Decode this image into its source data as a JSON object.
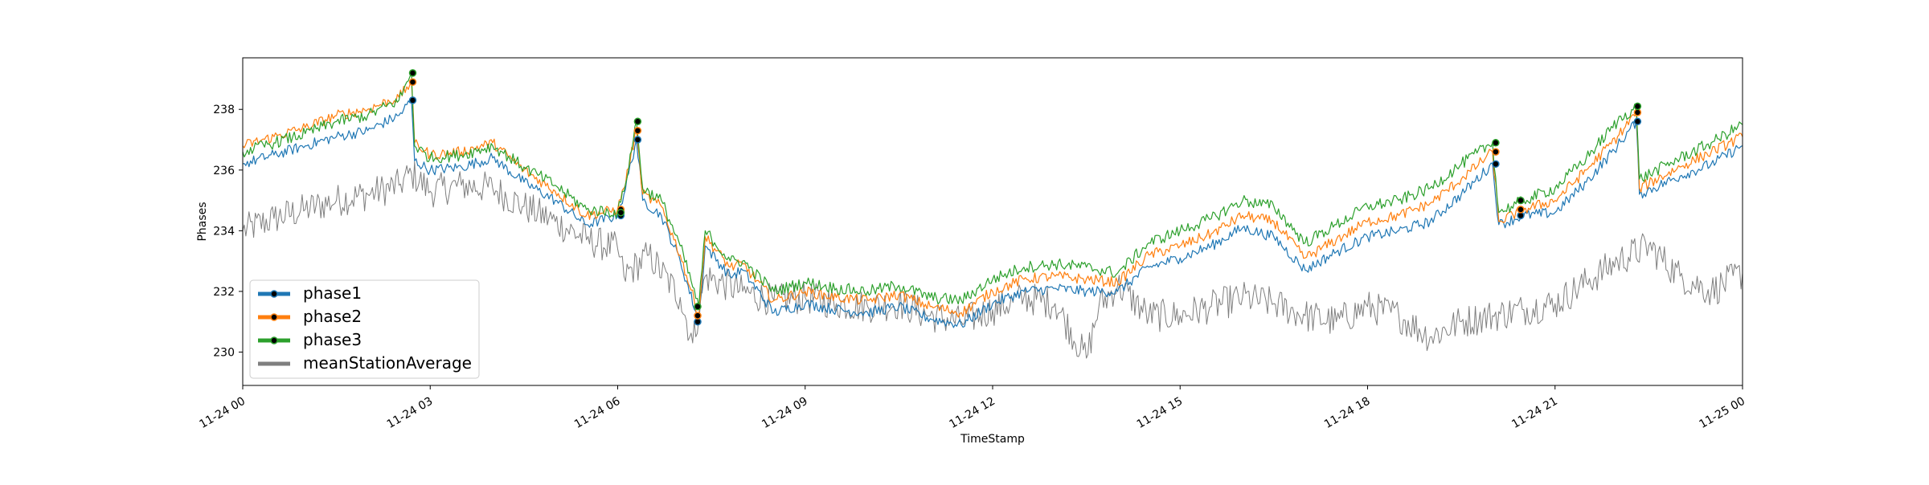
{
  "chart_data": {
    "type": "line",
    "title": "",
    "xlabel": "TimeStamp",
    "ylabel": "Phases",
    "x_range": [
      "11-24 00:00",
      "11-25 00:00"
    ],
    "ylim": [
      228.9,
      239.7
    ],
    "x_ticks": [
      "11-24 00",
      "11-24 03",
      "11-24 06",
      "11-24 09",
      "11-24 12",
      "11-24 15",
      "11-24 18",
      "11-24 21",
      "11-25 00"
    ],
    "y_ticks": [
      230,
      232,
      234,
      236,
      238
    ],
    "grid": false,
    "legend": {
      "placement": "lower-left"
    },
    "x_unit": "hours since 11-24 00:00",
    "series": [
      {
        "name": "phase1",
        "color": "#1f77b4",
        "marker": "black-dot",
        "points": [
          [
            0,
            236.2
          ],
          [
            0.5,
            236.5
          ],
          [
            1,
            236.8
          ],
          [
            1.5,
            237.1
          ],
          [
            2,
            237.3
          ],
          [
            2.5,
            237.8
          ],
          [
            2.7,
            238.3
          ],
          [
            2.75,
            236.3
          ],
          [
            3,
            236.0
          ],
          [
            3.5,
            236.1
          ],
          [
            4,
            236.4
          ],
          [
            4.5,
            235.6
          ],
          [
            5,
            235.0
          ],
          [
            5.5,
            234.2
          ],
          [
            6,
            234.5
          ],
          [
            6.1,
            235.2
          ],
          [
            6.3,
            237.0
          ],
          [
            6.4,
            235.0
          ],
          [
            6.7,
            234.5
          ],
          [
            7,
            233.0
          ],
          [
            7.3,
            231.0
          ],
          [
            7.4,
            233.5
          ],
          [
            7.8,
            232.5
          ],
          [
            8,
            232.7
          ],
          [
            8.5,
            231.3
          ],
          [
            9,
            231.6
          ],
          [
            9.5,
            231.4
          ],
          [
            10,
            231.3
          ],
          [
            10.5,
            231.5
          ],
          [
            11,
            231.1
          ],
          [
            11.5,
            230.9
          ],
          [
            12,
            231.6
          ],
          [
            12.5,
            232.0
          ],
          [
            13,
            232.1
          ],
          [
            13.5,
            232.0
          ],
          [
            14,
            232.0
          ],
          [
            14.5,
            232.8
          ],
          [
            15,
            233.1
          ],
          [
            15.5,
            233.5
          ],
          [
            16,
            234.1
          ],
          [
            16.5,
            233.8
          ],
          [
            17,
            232.7
          ],
          [
            17.5,
            233.3
          ],
          [
            18,
            233.8
          ],
          [
            18.5,
            234.0
          ],
          [
            19,
            234.3
          ],
          [
            19.5,
            235.2
          ],
          [
            20,
            236.2
          ],
          [
            20.1,
            234.2
          ],
          [
            20.5,
            234.5
          ],
          [
            21,
            234.6
          ],
          [
            21.5,
            235.6
          ],
          [
            22,
            236.8
          ],
          [
            22.3,
            237.6
          ],
          [
            22.35,
            235.2
          ],
          [
            23,
            235.8
          ],
          [
            23.5,
            236.2
          ],
          [
            24,
            236.8
          ]
        ]
      },
      {
        "name": "phase2",
        "color": "#ff7f0e",
        "marker": "black-dot",
        "points": [
          [
            0,
            236.8
          ],
          [
            0.5,
            237.1
          ],
          [
            1,
            237.4
          ],
          [
            1.5,
            237.8
          ],
          [
            2,
            238.0
          ],
          [
            2.5,
            238.4
          ],
          [
            2.7,
            238.9
          ],
          [
            2.75,
            236.9
          ],
          [
            3,
            236.5
          ],
          [
            3.5,
            236.6
          ],
          [
            4,
            236.9
          ],
          [
            4.5,
            236.0
          ],
          [
            5,
            235.3
          ],
          [
            5.5,
            234.5
          ],
          [
            6,
            234.7
          ],
          [
            6.1,
            235.4
          ],
          [
            6.3,
            237.3
          ],
          [
            6.4,
            235.2
          ],
          [
            6.7,
            234.8
          ],
          [
            7,
            233.2
          ],
          [
            7.3,
            231.2
          ],
          [
            7.4,
            233.8
          ],
          [
            7.8,
            232.8
          ],
          [
            8,
            232.9
          ],
          [
            8.5,
            231.7
          ],
          [
            9,
            232.0
          ],
          [
            9.5,
            231.8
          ],
          [
            10,
            231.7
          ],
          [
            10.5,
            231.9
          ],
          [
            11,
            231.5
          ],
          [
            11.5,
            231.3
          ],
          [
            12,
            232.0
          ],
          [
            12.5,
            232.4
          ],
          [
            13,
            232.5
          ],
          [
            13.5,
            232.4
          ],
          [
            14,
            232.3
          ],
          [
            14.5,
            233.2
          ],
          [
            15,
            233.5
          ],
          [
            15.5,
            233.9
          ],
          [
            16,
            234.5
          ],
          [
            16.5,
            234.3
          ],
          [
            17,
            233.1
          ],
          [
            17.5,
            233.7
          ],
          [
            18,
            234.3
          ],
          [
            18.5,
            234.5
          ],
          [
            19,
            234.9
          ],
          [
            19.5,
            235.7
          ],
          [
            20,
            236.6
          ],
          [
            20.1,
            234.3
          ],
          [
            20.5,
            234.7
          ],
          [
            21,
            235.0
          ],
          [
            21.5,
            236.0
          ],
          [
            22,
            237.1
          ],
          [
            22.3,
            237.9
          ],
          [
            22.35,
            235.4
          ],
          [
            23,
            236.1
          ],
          [
            23.5,
            236.6
          ],
          [
            24,
            237.1
          ]
        ]
      },
      {
        "name": "phase3",
        "color": "#2ca02c",
        "marker": "black-dot",
        "points": [
          [
            0,
            236.6
          ],
          [
            0.5,
            236.9
          ],
          [
            1,
            237.2
          ],
          [
            1.5,
            237.6
          ],
          [
            2,
            237.8
          ],
          [
            2.5,
            238.3
          ],
          [
            2.7,
            239.2
          ],
          [
            2.75,
            236.8
          ],
          [
            3,
            236.4
          ],
          [
            3.5,
            236.5
          ],
          [
            4,
            236.8
          ],
          [
            4.5,
            236.1
          ],
          [
            5,
            235.5
          ],
          [
            5.5,
            234.7
          ],
          [
            6,
            234.6
          ],
          [
            6.1,
            235.3
          ],
          [
            6.3,
            237.6
          ],
          [
            6.4,
            235.4
          ],
          [
            6.7,
            235.0
          ],
          [
            7,
            233.5
          ],
          [
            7.3,
            231.5
          ],
          [
            7.4,
            234.0
          ],
          [
            7.8,
            233.0
          ],
          [
            8,
            233.0
          ],
          [
            8.5,
            232.0
          ],
          [
            9,
            232.3
          ],
          [
            9.5,
            232.1
          ],
          [
            10,
            232.0
          ],
          [
            10.5,
            232.2
          ],
          [
            11,
            231.8
          ],
          [
            11.5,
            231.7
          ],
          [
            12,
            232.4
          ],
          [
            12.5,
            232.8
          ],
          [
            13,
            232.9
          ],
          [
            13.5,
            232.8
          ],
          [
            14,
            232.6
          ],
          [
            14.5,
            233.6
          ],
          [
            15,
            234.0
          ],
          [
            15.5,
            234.4
          ],
          [
            16,
            235.0
          ],
          [
            16.5,
            234.8
          ],
          [
            17,
            233.6
          ],
          [
            17.5,
            234.2
          ],
          [
            18,
            234.8
          ],
          [
            18.5,
            235.0
          ],
          [
            19,
            235.4
          ],
          [
            19.5,
            236.2
          ],
          [
            20,
            236.9
          ],
          [
            20.1,
            234.6
          ],
          [
            20.5,
            235.0
          ],
          [
            21,
            235.4
          ],
          [
            21.5,
            236.4
          ],
          [
            22,
            237.6
          ],
          [
            22.3,
            238.1
          ],
          [
            22.35,
            235.7
          ],
          [
            23,
            236.4
          ],
          [
            23.5,
            236.9
          ],
          [
            24,
            237.5
          ]
        ]
      },
      {
        "name": "meanStationAverage",
        "color": "#7f7f7f",
        "marker": "none",
        "points": [
          [
            0,
            234.0
          ],
          [
            0.5,
            234.4
          ],
          [
            1,
            234.7
          ],
          [
            1.5,
            235.0
          ],
          [
            2,
            235.2
          ],
          [
            2.5,
            235.5
          ],
          [
            2.7,
            235.9
          ],
          [
            3,
            235.3
          ],
          [
            3.5,
            235.5
          ],
          [
            4,
            235.4
          ],
          [
            4.5,
            234.8
          ],
          [
            5,
            234.3
          ],
          [
            5.5,
            233.7
          ],
          [
            6,
            233.4
          ],
          [
            6.1,
            232.5
          ],
          [
            6.5,
            233.2
          ],
          [
            7,
            231.8
          ],
          [
            7.2,
            230.3
          ],
          [
            7.4,
            232.5
          ],
          [
            8,
            232.0
          ],
          [
            8.5,
            231.7
          ],
          [
            9,
            231.8
          ],
          [
            9.5,
            231.6
          ],
          [
            10,
            231.5
          ],
          [
            10.5,
            231.6
          ],
          [
            11,
            231.2
          ],
          [
            11.5,
            231.0
          ],
          [
            12,
            231.4
          ],
          [
            12.5,
            231.8
          ],
          [
            13,
            231.6
          ],
          [
            13.5,
            229.8
          ],
          [
            13.7,
            231.5
          ],
          [
            14,
            232.2
          ],
          [
            14.5,
            231.2
          ],
          [
            15,
            231.2
          ],
          [
            15.5,
            231.5
          ],
          [
            16,
            231.8
          ],
          [
            16.5,
            231.6
          ],
          [
            17,
            231.2
          ],
          [
            17.5,
            231.0
          ],
          [
            18,
            231.5
          ],
          [
            18.5,
            231.2
          ],
          [
            19,
            230.5
          ],
          [
            19.5,
            231.0
          ],
          [
            20,
            231.2
          ],
          [
            20.5,
            231.4
          ],
          [
            21,
            231.6
          ],
          [
            21.5,
            232.3
          ],
          [
            22,
            233.0
          ],
          [
            22.5,
            233.5
          ],
          [
            23,
            232.5
          ],
          [
            23.5,
            232.0
          ],
          [
            24,
            232.6
          ]
        ]
      }
    ]
  }
}
